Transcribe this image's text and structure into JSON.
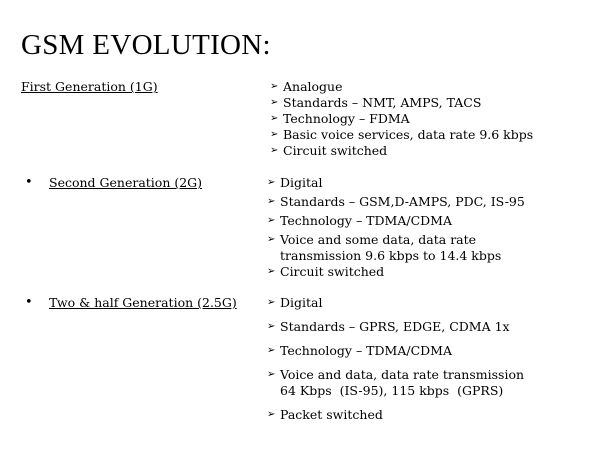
{
  "title": "GSM EVOLUTION:",
  "generations": [
    {
      "heading": "First Generation (1G)",
      "features": [
        "Analogue",
        "Standards – NMT, AMPS, TACS",
        "Technology – FDMA",
        "Basic voice services, data rate 9.6 kbps",
        "Circuit switched"
      ]
    },
    {
      "heading": "Second Generation (2G)",
      "features": [
        "Digital",
        "Standards – GSM,D-AMPS,  PDC,  IS-95",
        "Technology – TDMA/CDMA",
        "Voice and some data, data rate\ntransmission 9.6 kbps to 14.4 kbps",
        "Circuit switched"
      ]
    },
    {
      "heading": "Two & half Generation (2.5G)",
      "features": [
        "Digital",
        "Standards – GPRS, EDGE,  CDMA 1x",
        "Technology – TDMA/CDMA",
        "Voice and data, data rate transmission\n64 Kbps  (IS-95), 115 kbps  (GPRS)",
        "Packet switched"
      ]
    }
  ],
  "icons": {
    "bullet": "•",
    "arrow": "➢"
  }
}
